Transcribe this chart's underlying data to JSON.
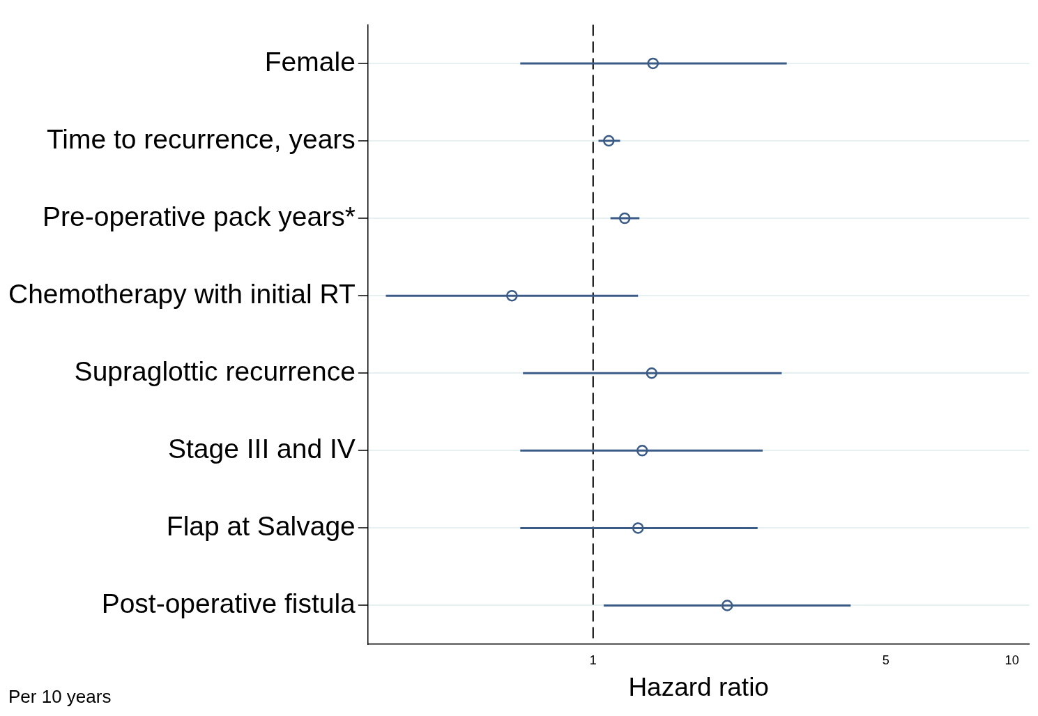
{
  "chart_data": {
    "type": "scatter",
    "orientation": "horizontal",
    "xlabel": "Hazard ratio",
    "categories": [
      "Female",
      "Time to recurrence, years",
      "Pre-operative pack years*",
      "Chemotherapy with initial RT",
      "Supraglottic recurrence",
      "Stage III and IV",
      "Flap at Salvage",
      "Post-operative fistula"
    ],
    "values": [
      1.39,
      1.09,
      1.19,
      0.64,
      1.38,
      1.31,
      1.28,
      2.09
    ],
    "errors": [
      [
        0.67,
        2.9
      ],
      [
        1.03,
        1.16
      ],
      [
        1.1,
        1.29
      ],
      [
        0.32,
        1.28
      ],
      [
        0.68,
        2.82
      ],
      [
        0.67,
        2.54
      ],
      [
        0.67,
        2.47
      ],
      [
        1.06,
        4.12
      ]
    ],
    "color": "#3b5b87",
    "marker": "circle",
    "log": "x",
    "xlim": [
      0.29,
      11
    ],
    "xticks": [
      1,
      5,
      10
    ],
    "grid": "y",
    "ref_lines": [
      {
        "axis": "x",
        "value": 1,
        "line_style": "dashed",
        "color": "#000000"
      }
    ],
    "annotations": [
      "Per 10 years"
    ]
  }
}
